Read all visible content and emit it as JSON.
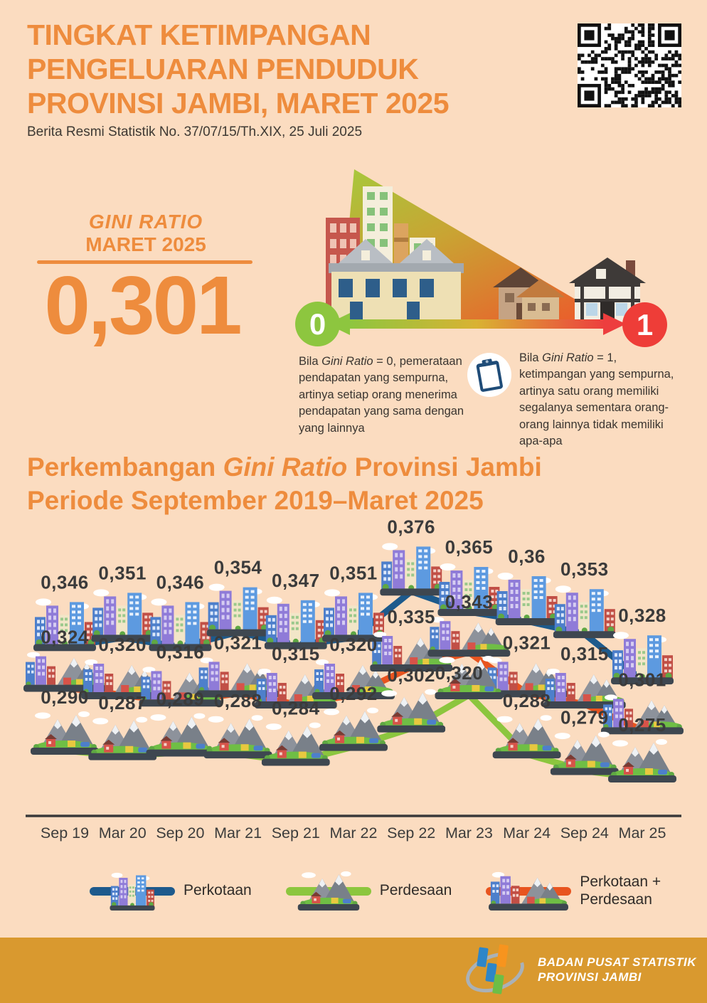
{
  "header": {
    "title_lines": [
      "TINGKAT KETIMPANGAN",
      "PENGELUARAN PENDUDUK",
      "PROVINSI JAMBI, MARET 2025"
    ],
    "subtitle": "Berita Resmi Statistik No. 37/07/15/Th.XIX, 25 Juli 2025"
  },
  "gini": {
    "label_line1": "GINI RATIO",
    "label_line2": "MARET 2025",
    "value": "0,301"
  },
  "scale": {
    "min_label": "0",
    "max_label": "1",
    "explain_min": {
      "prefix": "Bila ",
      "term": "Gini Ratio",
      "rest": " = 0, pemerataan pendapatan yang sempurna, artinya setiap orang menerima pendapatan yang sama dengan yang lainnya"
    },
    "explain_max": {
      "prefix": "Bila ",
      "term": "Gini Ratio",
      "rest": " = 1, ketimpangan yang sempurna, artinya satu orang memiliki segalanya sementara orang-orang lainnya tidak memiliki apa-apa"
    }
  },
  "section": {
    "title_part1": "Perkembangan ",
    "title_italic": "Gini Ratio",
    "title_part2": " Provinsi Jambi",
    "title_line2": "Periode September 2019–Maret 2025"
  },
  "chart_data": {
    "type": "line",
    "title": "Perkembangan Gini Ratio Provinsi Jambi Periode September 2019–Maret 2025",
    "categories": [
      "Sep 19",
      "Mar 20",
      "Sep 20",
      "Mar 21",
      "Sep 21",
      "Mar 22",
      "Sep 22",
      "Mar 23",
      "Mar 24",
      "Sep 24",
      "Mar 25"
    ],
    "series": [
      {
        "name": "Perkotaan",
        "icon": "city",
        "color": "#1d5a8c",
        "values": [
          0.346,
          0.351,
          0.346,
          0.354,
          0.347,
          0.351,
          0.376,
          0.365,
          0.36,
          0.353,
          0.328
        ],
        "labels": [
          "0,346",
          "0,351",
          "0,346",
          "0,354",
          "0,347",
          "0,351",
          "0,376",
          "0,365",
          "0,36",
          "0,353",
          "0,328"
        ]
      },
      {
        "name": "Perkotaan + Perdesaan",
        "icon": "mixed",
        "color": "#e8541f",
        "values": [
          0.324,
          0.32,
          0.316,
          0.321,
          0.315,
          0.32,
          0.335,
          0.343,
          0.321,
          0.315,
          0.301
        ],
        "labels": [
          "0,324",
          "0,320",
          "0,316",
          "0,321",
          "0,315",
          "0,320",
          "0,335",
          "0,343",
          "0,321",
          "0,315",
          "0,301"
        ]
      },
      {
        "name": "Perdesaan",
        "icon": "village",
        "color": "#8cc63e",
        "values": [
          0.29,
          0.287,
          0.289,
          0.288,
          0.284,
          0.292,
          0.302,
          0.32,
          0.288,
          0.279,
          0.275
        ],
        "labels": [
          "0,290",
          "0,287",
          "0,289",
          "0,288",
          "0,284",
          "0,292",
          "0,302",
          "0,320",
          "0,288",
          "0,279",
          "0,275"
        ],
        "label_offsets": {
          "7": [
            -14,
            44
          ]
        }
      }
    ],
    "xlabel": "",
    "ylabel": "",
    "ylim": [
      0.27,
      0.39
    ],
    "grid": false,
    "legend_position": "bottom"
  },
  "legend": {
    "items": [
      {
        "label": "Perkotaan",
        "icon": "city",
        "color": "#1d5a8c"
      },
      {
        "label": "Perdesaan",
        "icon": "village",
        "color": "#8cc63e"
      },
      {
        "label": "Perkotaan +\nPerdesaan",
        "icon": "mixed",
        "color": "#e8541f"
      }
    ]
  },
  "footer": {
    "org_line1": "BADAN PUSAT STATISTIK",
    "org_line2": "PROVINSI JAMBI"
  },
  "colors": {
    "background": "#fbdcc0",
    "accent_orange": "#ee8c3d",
    "text_dark": "#3b3b3b",
    "footer_band": "#d9992f",
    "scale_zero_green": "#8dc63f",
    "scale_one_red": "#ee3d38",
    "series_perkotaan": "#1d5a8c",
    "series_perdesaan": "#8cc63e",
    "series_total": "#e8541f"
  }
}
